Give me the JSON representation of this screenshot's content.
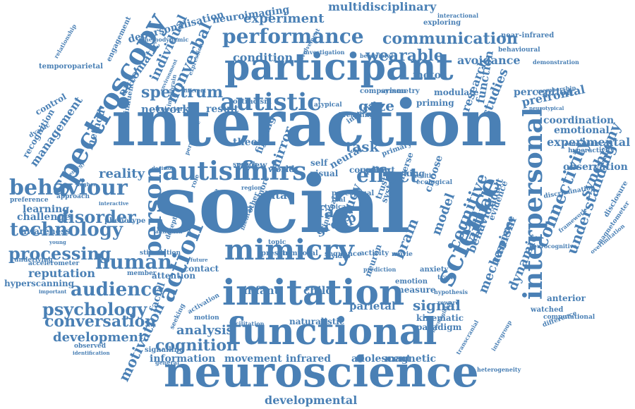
{
  "colors": {
    "word": "#4a80b5",
    "background": "#ffffff"
  },
  "words": [
    "social",
    "interaction",
    "participant",
    "neuroscience",
    "functional",
    "imitation",
    "mimicry",
    "interpersonal",
    "spectroscopy",
    "autism",
    "autistic",
    "behaviour",
    "technology",
    "fnirs",
    "person",
    "action",
    "science",
    "performance",
    "communication",
    "human",
    "audience",
    "psychology",
    "disorder",
    "processing",
    "connectivity",
    "cognitive",
    "virtual",
    "effect",
    "understanding",
    "conversation",
    "cognition",
    "motivation",
    "brain",
    "experiment",
    "multidisciplinary",
    "neuroimaging",
    "spectrum",
    "nonverbal",
    "individual",
    "reputation",
    "development",
    "developmental",
    "reality",
    "analysis",
    "information",
    "movement",
    "infrared",
    "adolescent",
    "magnetic",
    "signal",
    "dynamic",
    "synchrony",
    "mechanism",
    "behavior",
    "wearable",
    "gaze",
    "face",
    "group",
    "mirror",
    "task",
    "study",
    "model",
    "experimental",
    "coordination",
    "emotional",
    "observation",
    "prefrontal",
    "perception",
    "avoidance",
    "research",
    "function",
    "studies",
    "condition",
    "network",
    "result",
    "automatic",
    "management",
    "method",
    "recognition",
    "learning",
    "challenge",
    "awareness",
    "hyperscanning",
    "infant",
    "child",
    "parietal",
    "kinematic",
    "paradigm",
    "neural",
    "adult",
    "choose",
    "response",
    "evidence",
    "attention",
    "facial",
    "contact",
    "theory",
    "finding",
    "review",
    "world",
    "speech",
    "motor",
    "modulate",
    "ostracism",
    "coupling",
    "context",
    "data",
    "visual",
    "self",
    "more",
    "other",
    "typical",
    "mental",
    "trust",
    "video",
    "movie",
    "neuron",
    "activity",
    "control",
    "dyadic",
    "depersonalisation",
    "hemodynamic",
    "temporoparietal",
    "engagement",
    "relationship",
    "expression",
    "environment",
    "different",
    "trajectory",
    "influence",
    "interbrain",
    "perspective",
    "underlying",
    "young",
    "accelerometer",
    "phenotype",
    "preference",
    "approach",
    "interactive",
    "important",
    "member",
    "stimulation",
    "deception",
    "affiliation",
    "theatre",
    "anterior",
    "watched",
    "computational",
    "difference",
    "intergroup",
    "heterogeneity",
    "transcranial",
    "haemoglobin",
    "facilitation",
    "naturalistic",
    "signalling",
    "motion",
    "activation",
    "seeking",
    "general",
    "observed",
    "identification",
    "membership",
    "demonstration",
    "neurotypical",
    "comorbidity",
    "hyperactivity",
    "disclosure",
    "overimitation",
    "magnetometer",
    "neurocognitive",
    "discrimination",
    "framework",
    "exploring",
    "near-infrared",
    "behavioural",
    "interactional",
    "behavioral",
    "investigation",
    "involvement",
    "comparison",
    "symmetry",
    "priming",
    "breathing",
    "imitative",
    "primary",
    "tracking",
    "inverse",
    "system",
    "measure",
    "anxiety",
    "emotion",
    "atypical",
    "decision",
    "internal",
    "perceptual",
    "real",
    "role",
    "trait",
    "hypothesis",
    "reward",
    "sequence",
    "temporal",
    "present",
    "topic",
    "region",
    "future",
    "sensor",
    "health",
    "ecological",
    "higher",
    "energy",
    "prediction",
    "resonance",
    "default"
  ]
}
